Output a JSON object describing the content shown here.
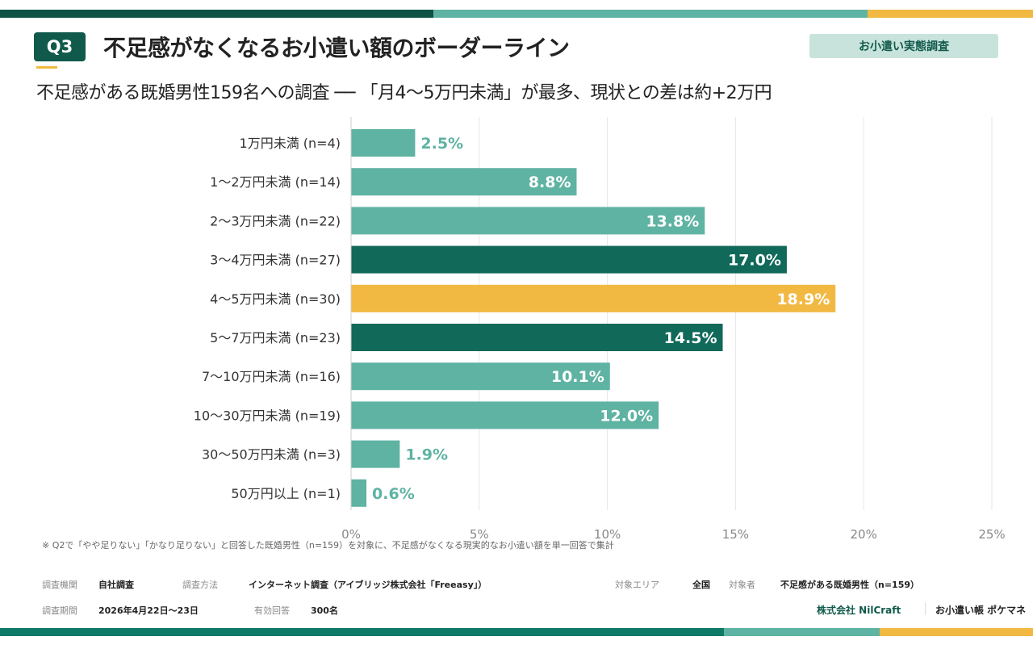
{
  "header": {
    "badge_q": "Q3",
    "title": "不足感がなくなるお小遣い額のボーダーライン",
    "tag": "お小遣い実態調査",
    "subtitle": "不足感がある既婚男性159名への調査 ── 「月4〜5万円未満」が最多、現状との差は約+2万円"
  },
  "colors": {
    "normal": "#5fb3a3",
    "emphasis": "#11695a",
    "highlight": "#f2b942",
    "stripe_dark": "#0f5345",
    "stripe_teal": "#5fb3a3",
    "stripe_yellow": "#f2b942"
  },
  "chart_data": {
    "type": "bar",
    "orientation": "horizontal",
    "categories": [
      "1万円未満 (n=4)",
      "1〜2万円未満 (n=14)",
      "2〜3万円未満 (n=22)",
      "3〜4万円未満 (n=27)",
      "4〜5万円未満 (n=30)",
      "5〜7万円未満 (n=23)",
      "7〜10万円未満 (n=16)",
      "10〜30万円未満 (n=19)",
      "30〜50万円未満 (n=3)",
      "50万円以上 (n=1)"
    ],
    "values": [
      2.5,
      8.8,
      13.8,
      17.0,
      18.9,
      14.5,
      10.1,
      12.0,
      1.9,
      0.6
    ],
    "data_labels": [
      "2.5%",
      "8.8%",
      "13.8%",
      "17.0%",
      "18.9%",
      "14.5%",
      "10.1%",
      "12.0%",
      "1.9%",
      "0.6%"
    ],
    "bar_colors": [
      "normal",
      "normal",
      "normal",
      "emphasis",
      "highlight",
      "emphasis",
      "normal",
      "normal",
      "normal",
      "normal"
    ],
    "xlim": [
      0,
      25
    ],
    "xticks": [
      0,
      5,
      10,
      15,
      20,
      25
    ],
    "xtick_labels": [
      "0%",
      "5%",
      "10%",
      "15%",
      "20%",
      "25%"
    ],
    "grid": "vertical"
  },
  "footnote": "※ Q2で「やや足りない」「かなり足りない」と回答した既婚男性（n=159）を対象に、不足感がなくなる現実的なお小遣い額を単一回答で集計",
  "meta": {
    "org_k": "調査機関",
    "org_v": "自社調査",
    "method_k": "調査方法",
    "method_v": "インターネット調査（アイブリッジ株式会社「Freeasy」）",
    "area_k": "対象エリア",
    "area_v": "全国",
    "target_k": "対象者",
    "target_v": "不足感がある既婚男性（n=159）",
    "period_k": "調査期間",
    "period_v": "2026年4月22日〜23日",
    "resp_k": "有効回答",
    "resp_v": "300名",
    "company": "株式会社 NilCraft",
    "product": "お小遣い帳 ポケマネ"
  }
}
